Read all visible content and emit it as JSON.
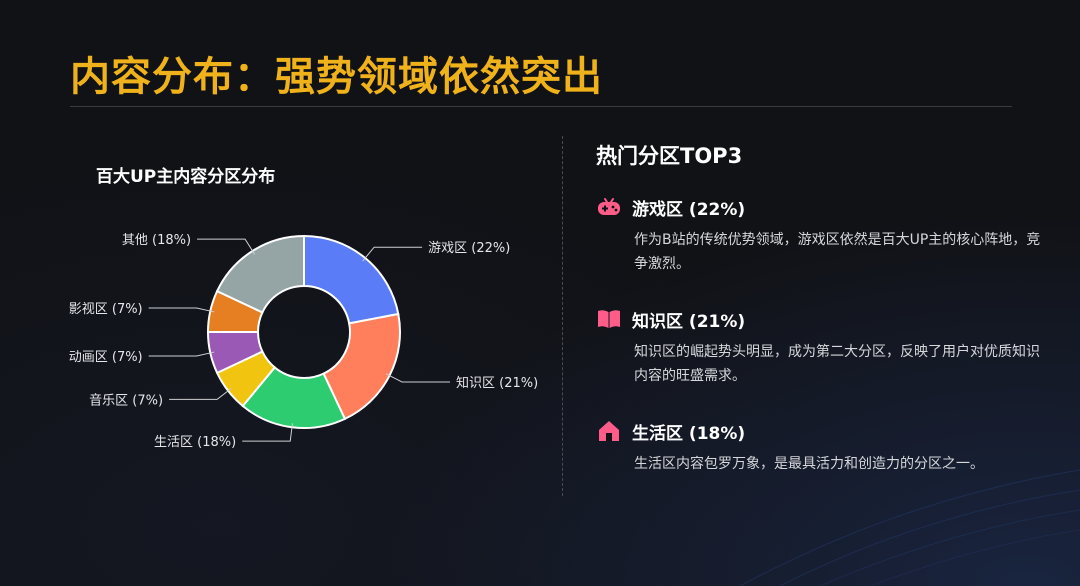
{
  "page": {
    "title": "内容分布：强势领域依然突出"
  },
  "chart_data": {
    "type": "pie",
    "title": "百大UP主内容分区分布",
    "slices": [
      {
        "label": "游戏区 (22%)",
        "value": 22,
        "color": "#5b7cf7"
      },
      {
        "label": "知识区 (21%)",
        "value": 21,
        "color": "#ff7f5c"
      },
      {
        "label": "生活区 (18%)",
        "value": 18,
        "color": "#2ecc71"
      },
      {
        "label": "音乐区 (7%)",
        "value": 7,
        "color": "#f1c40f"
      },
      {
        "label": "动画区 (7%)",
        "value": 7,
        "color": "#9b59b6"
      },
      {
        "label": "影视区 (7%)",
        "value": 7,
        "color": "#e67e22"
      },
      {
        "label": "其他 (18%)",
        "value": 18,
        "color": "#95a5a6"
      }
    ]
  },
  "hot_sections": {
    "title": "热门分区TOP3",
    "items": [
      {
        "title": "游戏区 (22%)",
        "icon": "gamepad-icon",
        "description": "作为B站的传统优势领域，游戏区依然是百大UP主的核心阵地，竞争激烈。"
      },
      {
        "title": "知识区 (21%)",
        "icon": "book-icon",
        "description": "知识区的崛起势头明显，成为第二大分区，反映了用户对优质知识内容的旺盛需求。"
      },
      {
        "title": "生活区 (18%)",
        "icon": "home-icon",
        "description": "生活区内容包罗万象，是最具活力和创造力的分区之一。"
      }
    ]
  },
  "colors": {
    "accent": "#f0b21a",
    "icon": "#ff5c8a"
  }
}
